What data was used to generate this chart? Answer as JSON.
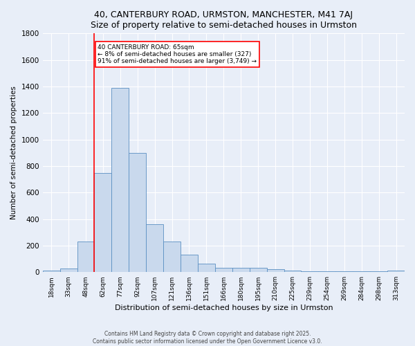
{
  "title": "40, CANTERBURY ROAD, URMSTON, MANCHESTER, M41 7AJ",
  "subtitle": "Size of property relative to semi-detached houses in Urmston",
  "xlabel": "Distribution of semi-detached houses by size in Urmston",
  "ylabel": "Number of semi-detached properties",
  "bar_color": "#c9d9ed",
  "bar_edge_color": "#5a8fc2",
  "background_color": "#e8eef8",
  "fig_background_color": "#e8eef8",
  "categories": [
    "18sqm",
    "33sqm",
    "48sqm",
    "62sqm",
    "77sqm",
    "92sqm",
    "107sqm",
    "121sqm",
    "136sqm",
    "151sqm",
    "166sqm",
    "180sqm",
    "195sqm",
    "210sqm",
    "225sqm",
    "239sqm",
    "254sqm",
    "269sqm",
    "284sqm",
    "298sqm",
    "313sqm"
  ],
  "values": [
    10,
    25,
    230,
    750,
    1390,
    900,
    360,
    230,
    130,
    65,
    35,
    30,
    30,
    20,
    10,
    5,
    5,
    5,
    5,
    5,
    10
  ],
  "ylim": [
    0,
    1800
  ],
  "yticks": [
    0,
    200,
    400,
    600,
    800,
    1000,
    1200,
    1400,
    1600,
    1800
  ],
  "red_line_x": 3.0,
  "annotation_text": "40 CANTERBURY ROAD: 65sqm\n← 8% of semi-detached houses are smaller (327)\n91% of semi-detached houses are larger (3,749) →",
  "footer_line1": "Contains HM Land Registry data © Crown copyright and database right 2025.",
  "footer_line2": "Contains public sector information licensed under the Open Government Licence v3.0."
}
